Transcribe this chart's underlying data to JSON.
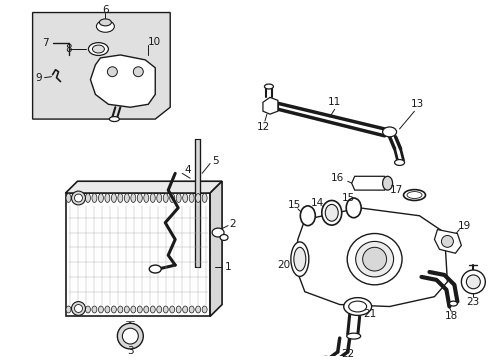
{
  "bg_color": "#ffffff",
  "line_color": "#1a1a1a",
  "gray_fill": "#d8d8d8",
  "light_gray": "#ebebeb",
  "inset_fill": "#e0e0e0",
  "fig_w": 4.89,
  "fig_h": 3.6,
  "dpi": 100
}
